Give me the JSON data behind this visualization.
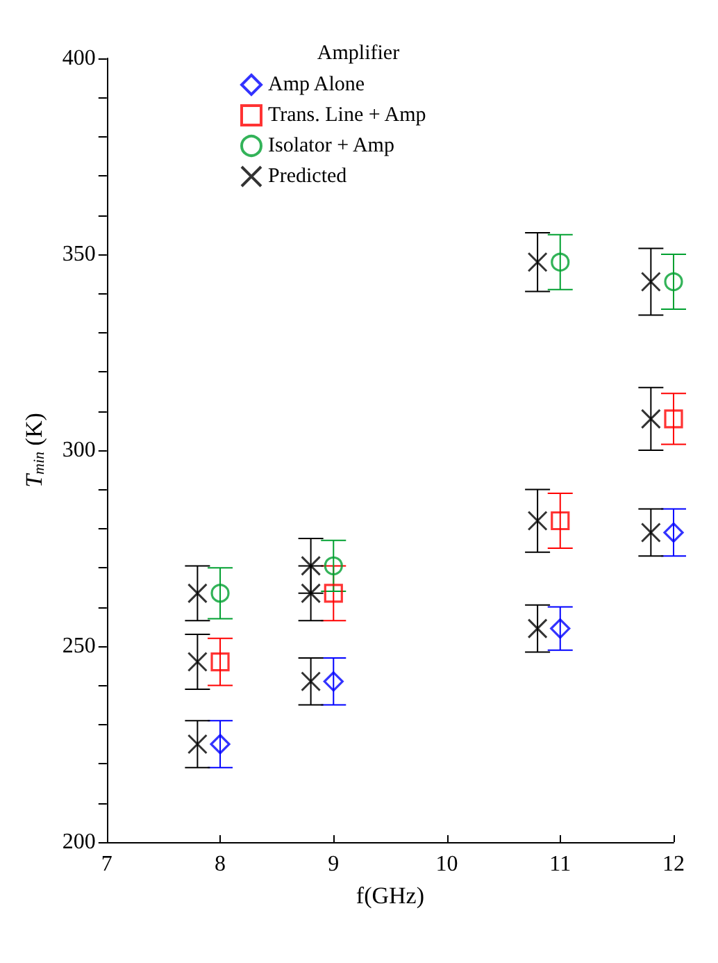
{
  "chart_data": {
    "type": "scatter",
    "xlabel": "f(GHz)",
    "ylabel": "T$_{min}$ (K)",
    "legend_title": "Amplifier",
    "legend": "top",
    "grid": false,
    "xlim": [
      7,
      12
    ],
    "xticks": [
      7,
      8,
      9,
      10,
      11,
      12
    ],
    "ylim": [
      200,
      400
    ],
    "yticks": [
      200,
      {
        "value": 210,
        "label": null
      },
      {
        "value": 220,
        "label": null
      },
      {
        "value": 230,
        "label": null
      },
      {
        "value": 240,
        "label": null
      },
      250,
      {
        "value": 260,
        "label": null
      },
      {
        "value": 270,
        "label": null
      },
      {
        "value": 280,
        "label": null
      },
      {
        "value": 290,
        "label": null
      },
      300,
      {
        "value": 310,
        "label": null
      },
      {
        "value": 320,
        "label": null
      },
      {
        "value": 330,
        "label": null
      },
      {
        "value": 340,
        "label": null
      },
      350,
      {
        "value": 360,
        "label": null
      },
      {
        "value": 370,
        "label": null
      },
      {
        "value": 380,
        "label": null
      },
      {
        "value": 390,
        "label": null
      },
      400
    ],
    "series": [
      {
        "name": "Amp Alone",
        "color": "#0000ff",
        "marker": "diamond",
        "x": [
          8,
          9,
          11,
          12
        ],
        "values": [
          225,
          241,
          254.5,
          279
        ],
        "errors": [
          6,
          6,
          5.5,
          6
        ]
      },
      {
        "name": "Trans. Line + Amp",
        "color": "#ff0000",
        "marker": "square",
        "x": [
          8,
          9,
          11,
          12
        ],
        "values": [
          246,
          263.5,
          282,
          308
        ],
        "errors": [
          6,
          7,
          7,
          6.5
        ]
      },
      {
        "name": "Isolator + Amp",
        "color": "#00a030",
        "marker": "circle",
        "x": [
          8,
          9,
          11,
          12
        ],
        "values": [
          263.5,
          270.5,
          348,
          343
        ],
        "errors": [
          6.5,
          6.5,
          7,
          7
        ]
      },
      {
        "name": "Predicted",
        "color": "#000000",
        "marker": "cross",
        "x": [
          7.8,
          7.8,
          7.8,
          8.8,
          8.8,
          8.8,
          10.8,
          10.8,
          10.8,
          11.8,
          11.8,
          11.8
        ],
        "values": [
          225,
          246,
          263.5,
          241,
          263.5,
          270.5,
          254.5,
          282,
          348,
          279,
          308,
          343
        ],
        "errors": [
          6,
          7,
          7,
          6,
          7,
          7,
          6,
          8,
          7.5,
          6,
          8,
          8.5
        ]
      }
    ]
  }
}
